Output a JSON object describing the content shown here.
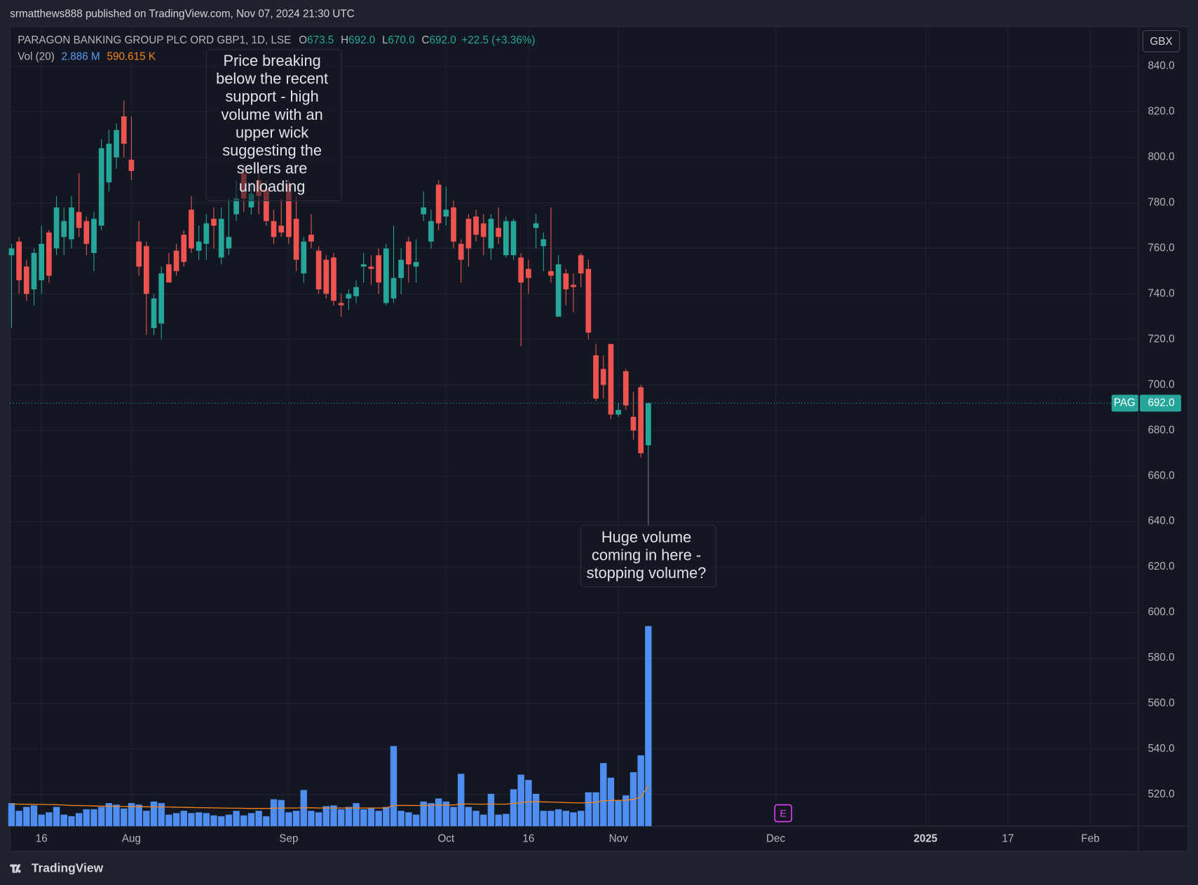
{
  "page": {
    "publisher": "srmatthews888 published on TradingView.com, Nov 07, 2024 21:30 UTC",
    "brand": "TradingView"
  },
  "chart_data": {
    "type": "candlestick",
    "title": "PARAGON BANKING GROUP PLC ORD GBP1, 1D, LSE",
    "currency": "GBX",
    "legend": {
      "ohlc": [
        {
          "prefix": "O",
          "label": "673.5"
        },
        {
          "prefix": "H",
          "label": "692.0"
        },
        {
          "prefix": "L",
          "label": "670.0"
        },
        {
          "prefix": "C",
          "label": "692.0"
        }
      ],
      "change": "+22.5 (+3.36%)"
    },
    "up_color": "#26a69a",
    "down_color": "#ef5350",
    "open": [
      757,
      763,
      752,
      742,
      746,
      767,
      760,
      765,
      764,
      776,
      772,
      758,
      770,
      789,
      800,
      818,
      799,
      763,
      761,
      725,
      727,
      753,
      759,
      766,
      777,
      759,
      762,
      773,
      756,
      760,
      775,
      793,
      778,
      790,
      786,
      772,
      770,
      788,
      773,
      749,
      766,
      759,
      755,
      756,
      736,
      738,
      739,
      752,
      752,
      757,
      736,
      738,
      747,
      763,
      752,
      775,
      763,
      788,
      774,
      778,
      762,
      773,
      774,
      771,
      760,
      769,
      757,
      757,
      756,
      751,
      769,
      761,
      750,
      730,
      749,
      744,
      757,
      751,
      713,
      707,
      718,
      687,
      706,
      686,
      699,
      673.5
    ],
    "high": [
      762,
      765,
      755,
      760,
      770,
      768,
      783,
      778,
      783,
      793,
      774,
      776,
      808,
      812,
      815,
      825,
      818,
      772,
      763,
      740,
      752,
      758,
      762,
      768,
      783,
      770,
      775,
      778,
      778,
      782,
      790,
      797,
      789,
      795,
      790,
      777,
      782,
      790,
      783,
      765,
      775,
      761,
      757,
      758,
      740,
      742,
      746,
      758,
      757,
      760,
      762,
      770,
      760,
      765,
      764,
      785,
      777,
      790,
      787,
      781,
      764,
      775,
      777,
      775,
      775,
      778,
      774,
      773,
      758,
      755,
      775,
      767,
      778,
      757,
      751,
      749,
      758,
      755,
      718,
      713,
      718,
      692,
      707,
      697,
      700,
      692
    ],
    "low": [
      725,
      740,
      737,
      735,
      740,
      745,
      757,
      757,
      760,
      765,
      757,
      750,
      768,
      785,
      795,
      800,
      790,
      748,
      722,
      722,
      720,
      745,
      748,
      752,
      758,
      755,
      755,
      760,
      753,
      757,
      772,
      776,
      775,
      775,
      770,
      762,
      765,
      762,
      750,
      745,
      760,
      740,
      738,
      735,
      730,
      733,
      736,
      745,
      744,
      740,
      735,
      736,
      740,
      745,
      745,
      772,
      760,
      768,
      770,
      760,
      745,
      752,
      763,
      757,
      755,
      762,
      756,
      755,
      717,
      740,
      760,
      750,
      745,
      730,
      735,
      732,
      743,
      720,
      693,
      694,
      685,
      686,
      689,
      676,
      668,
      670
    ],
    "close": [
      760,
      746,
      740,
      758,
      762,
      748,
      778,
      772,
      778,
      769,
      762,
      773,
      804,
      806,
      812,
      806,
      794,
      752,
      740,
      738,
      749,
      745,
      750,
      754,
      760,
      763,
      771,
      770,
      773,
      765,
      782,
      782,
      784,
      783,
      772,
      765,
      767,
      765,
      755,
      763,
      763,
      742,
      740,
      737,
      735,
      740,
      743,
      753,
      751,
      745,
      760,
      747,
      755,
      753,
      754,
      778,
      772,
      771,
      777,
      763,
      755,
      760,
      766,
      765,
      773,
      765,
      772,
      772,
      745,
      747,
      771,
      764,
      748,
      753,
      742,
      743,
      749,
      723,
      694,
      700,
      687,
      689,
      691,
      680,
      670,
      692
    ],
    "volume": {
      "name": "Vol (20)",
      "color": "#4e8ef0",
      "label_color": "#5b9cf6",
      "values": [
        333000,
        222000,
        278000,
        300000,
        167000,
        200000,
        278000,
        167000,
        144000,
        189000,
        244000,
        244000,
        278000,
        333000,
        311000,
        256000,
        333000,
        311000,
        222000,
        356000,
        333000,
        167000,
        189000,
        222000,
        189000,
        200000,
        189000,
        156000,
        144000,
        167000,
        222000,
        156000,
        189000,
        222000,
        144000,
        389000,
        378000,
        200000,
        222000,
        522000,
        222000,
        200000,
        289000,
        300000,
        244000,
        278000,
        333000,
        244000,
        267000,
        222000,
        278000,
        1156000,
        222000,
        200000,
        167000,
        356000,
        333000,
        400000,
        356000,
        278000,
        756000,
        278000,
        222000,
        167000,
        467000,
        167000,
        178000,
        533000,
        744000,
        667000,
        467000,
        222000,
        222000,
        244000,
        222000,
        200000,
        222000,
        489000,
        489000,
        911000,
        700000,
        367000,
        444000,
        778000,
        1022000,
        2886000
      ],
      "last_label": "2.886 M"
    },
    "volume_ma": {
      "color": "#f7841d",
      "values": [
        320000,
        318000,
        316000,
        315000,
        314000,
        312000,
        310000,
        305000,
        300000,
        298000,
        295000,
        292000,
        290000,
        288000,
        286000,
        284000,
        283000,
        282000,
        280000,
        280000,
        278000,
        276000,
        274000,
        272000,
        270000,
        268000,
        266000,
        264000,
        262000,
        260000,
        260000,
        258000,
        256000,
        256000,
        256000,
        258000,
        262000,
        262000,
        262000,
        266000,
        265000,
        262000,
        262000,
        262000,
        262000,
        262000,
        262000,
        262000,
        262000,
        262000,
        262000,
        300000,
        300000,
        300000,
        298000,
        300000,
        302000,
        304000,
        306000,
        306000,
        320000,
        320000,
        318000,
        318000,
        320000,
        318000,
        318000,
        328000,
        340000,
        350000,
        354000,
        350000,
        348000,
        345000,
        340000,
        338000,
        336000,
        340000,
        345000,
        365000,
        372000,
        372000,
        376000,
        385000,
        420000,
        590615
      ],
      "last_label": "590.615 K"
    },
    "xlim": [
      -0.2,
      150.4
    ],
    "xticks": [
      {
        "value": 4,
        "label": "16"
      },
      {
        "value": 16,
        "label": "Aug"
      },
      {
        "value": 37,
        "label": "Sep"
      },
      {
        "value": 58,
        "label": "Oct"
      },
      {
        "value": 69,
        "label": "16"
      },
      {
        "value": 81,
        "label": "Nov"
      },
      {
        "value": 102,
        "label": "Dec"
      },
      {
        "value": 122,
        "label": "2025"
      },
      {
        "value": 133,
        "label": "17"
      },
      {
        "value": 144,
        "label": "Feb"
      }
    ],
    "ylim": [
      506.1,
      857.4
    ],
    "yticks": [
      {
        "value": 520,
        "label": "520.0"
      },
      {
        "value": 540,
        "label": "540.0"
      },
      {
        "value": 560,
        "label": "560.0"
      },
      {
        "value": 580,
        "label": "580.0"
      },
      {
        "value": 600,
        "label": "600.0"
      },
      {
        "value": 620,
        "label": "620.0"
      },
      {
        "value": 640,
        "label": "640.0"
      },
      {
        "value": 660,
        "label": "660.0"
      },
      {
        "value": 680,
        "label": "680.0"
      },
      {
        "value": 700,
        "label": "700.0"
      },
      {
        "value": 720,
        "label": "720.0"
      },
      {
        "value": 740,
        "label": "740.0"
      },
      {
        "value": 760,
        "label": "760.0"
      },
      {
        "value": 780,
        "label": "780.0"
      },
      {
        "value": 800,
        "label": "800.0"
      },
      {
        "value": 820,
        "label": "820.0"
      },
      {
        "value": 840,
        "label": "840.0"
      }
    ],
    "vlim": [
      0,
      11530000
    ],
    "grid": true,
    "last_price": {
      "symbol": "PAG",
      "label": "692.0"
    },
    "earnings": {
      "label": "E",
      "x": 103
    },
    "annotations": [
      {
        "lines": [
          "Price breaking",
          "below the recent",
          "support - high",
          "volume with an",
          "upper wick",
          "suggesting the",
          "sellers are",
          "unloading"
        ]
      },
      {
        "lines": [
          "Huge volume",
          "coming in here -",
          "stopping volume?"
        ]
      }
    ]
  }
}
